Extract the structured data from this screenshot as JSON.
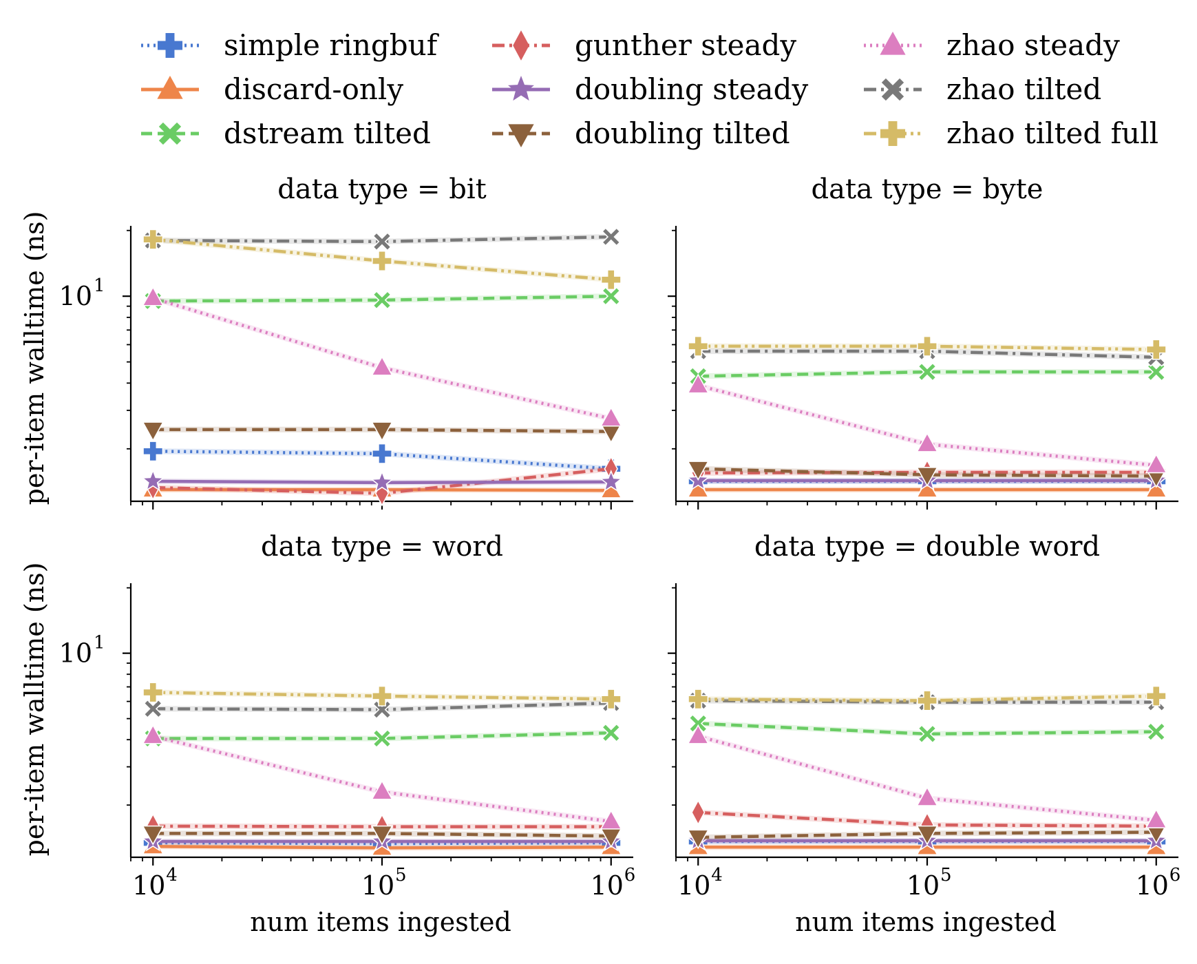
{
  "chart_data": {
    "type": "line",
    "x_scale": "log",
    "y_scale": "log",
    "shared_y": true,
    "x": [
      10000,
      100000,
      1000000
    ],
    "x_ticks": [
      {
        "value": 10000,
        "base": "10",
        "exp": "4"
      },
      {
        "value": 100000,
        "base": "10",
        "exp": "5"
      },
      {
        "value": 1000000,
        "base": "10",
        "exp": "6"
      }
    ],
    "y_ticks": [
      {
        "value": 10,
        "base": "10",
        "exp": "1"
      }
    ],
    "xlim": [
      8000,
      1250000
    ],
    "ylim": [
      1.15,
      21.0
    ],
    "xlabel": "num items ingested",
    "ylabel": "per-item walltime (ns)",
    "legend_location": "top, 3 columns",
    "series_styles": [
      {
        "name": "simple ringbuf",
        "color": "#4878d0",
        "dash": "dotted",
        "marker": "plus"
      },
      {
        "name": "discard-only",
        "color": "#ee854a",
        "dash": "solid",
        "marker": "triangle-up"
      },
      {
        "name": "dstream tilted",
        "color": "#6acc64",
        "dash": "dashed",
        "marker": "x"
      },
      {
        "name": "gunther steady",
        "color": "#d65f5f",
        "dash": "dashdot",
        "marker": "diamond"
      },
      {
        "name": "doubling steady",
        "color": "#956cb4",
        "dash": "solid",
        "marker": "star"
      },
      {
        "name": "doubling tilted",
        "color": "#8c613c",
        "dash": "dashed",
        "marker": "triangle-down"
      },
      {
        "name": "zhao steady",
        "color": "#dc7ec0",
        "dash": "dotted",
        "marker": "triangle-up"
      },
      {
        "name": "zhao tilted",
        "color": "#797979",
        "dash": "dashdot",
        "marker": "x"
      },
      {
        "name": "zhao tilted full",
        "color": "#d5bb67",
        "dash": "dashdotdot",
        "marker": "plus"
      }
    ],
    "panels": [
      {
        "title": "data type = bit",
        "series": [
          {
            "name": "simple ringbuf",
            "values": [
              1.95,
              1.9,
              1.62
            ]
          },
          {
            "name": "discard-only",
            "values": [
              1.3,
              1.3,
              1.29
            ]
          },
          {
            "name": "dstream tilted",
            "values": [
              9.5,
              9.6,
              10.0
            ]
          },
          {
            "name": "gunther steady",
            "values": [
              1.33,
              1.25,
              1.62
            ]
          },
          {
            "name": "doubling steady",
            "values": [
              1.42,
              1.4,
              1.41
            ]
          },
          {
            "name": "doubling tilted",
            "values": [
              2.45,
              2.45,
              2.4
            ]
          },
          {
            "name": "zhao steady",
            "values": [
              9.8,
              4.7,
              2.75
            ]
          },
          {
            "name": "zhao tilted",
            "values": [
              18.0,
              17.8,
              18.7
            ]
          },
          {
            "name": "zhao tilted full",
            "values": [
              18.2,
              14.5,
              11.9
            ]
          }
        ]
      },
      {
        "title": "data type = byte",
        "series": [
          {
            "name": "simple ringbuf",
            "values": [
              1.42,
              1.42,
              1.42
            ]
          },
          {
            "name": "discard-only",
            "values": [
              1.3,
              1.3,
              1.3
            ]
          },
          {
            "name": "dstream tilted",
            "values": [
              4.3,
              4.5,
              4.5
            ]
          },
          {
            "name": "gunther steady",
            "values": [
              1.55,
              1.56,
              1.56
            ]
          },
          {
            "name": "doubling steady",
            "values": [
              1.43,
              1.43,
              1.43
            ]
          },
          {
            "name": "doubling tilted",
            "values": [
              1.62,
              1.52,
              1.5
            ]
          },
          {
            "name": "zhao steady",
            "values": [
              3.9,
              2.1,
              1.68
            ]
          },
          {
            "name": "zhao tilted",
            "values": [
              5.6,
              5.6,
              5.25
            ]
          },
          {
            "name": "zhao tilted full",
            "values": [
              5.9,
              5.9,
              5.7
            ]
          }
        ]
      },
      {
        "title": "data type = word",
        "series": [
          {
            "name": "simple ringbuf",
            "values": [
              1.34,
              1.33,
              1.34
            ]
          },
          {
            "name": "discard-only",
            "values": [
              1.29,
              1.27,
              1.28
            ]
          },
          {
            "name": "dstream tilted",
            "values": [
              4.05,
              4.05,
              4.3
            ]
          },
          {
            "name": "gunther steady",
            "values": [
              1.6,
              1.59,
              1.59
            ]
          },
          {
            "name": "doubling steady",
            "values": [
              1.36,
              1.36,
              1.36
            ]
          },
          {
            "name": "doubling tilted",
            "values": [
              1.48,
              1.48,
              1.44
            ]
          },
          {
            "name": "zhao steady",
            "values": [
              4.15,
              2.3,
              1.68
            ]
          },
          {
            "name": "zhao tilted",
            "values": [
              5.55,
              5.5,
              5.9
            ]
          },
          {
            "name": "zhao tilted full",
            "values": [
              6.6,
              6.35,
              6.15
            ]
          }
        ]
      },
      {
        "title": "data type = double word",
        "series": [
          {
            "name": "simple ringbuf",
            "values": [
              1.36,
              1.36,
              1.36
            ]
          },
          {
            "name": "discard-only",
            "values": [
              1.28,
              1.28,
              1.28
            ]
          },
          {
            "name": "dstream tilted",
            "values": [
              4.75,
              4.25,
              4.35
            ]
          },
          {
            "name": "gunther steady",
            "values": [
              1.85,
              1.62,
              1.6
            ]
          },
          {
            "name": "doubling steady",
            "values": [
              1.37,
              1.37,
              1.37
            ]
          },
          {
            "name": "doubling tilted",
            "values": [
              1.42,
              1.48,
              1.5
            ]
          },
          {
            "name": "zhao steady",
            "values": [
              4.15,
              2.15,
              1.7
            ]
          },
          {
            "name": "zhao tilted",
            "values": [
              6.05,
              5.95,
              5.95
            ]
          },
          {
            "name": "zhao tilted full",
            "values": [
              6.15,
              6.05,
              6.35
            ]
          }
        ]
      }
    ]
  }
}
